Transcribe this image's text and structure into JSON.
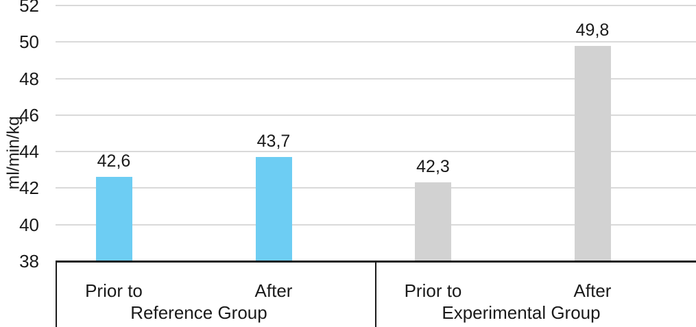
{
  "chart_data": {
    "type": "bar",
    "title": "",
    "xlabel": "",
    "ylabel": "ml/min/kg",
    "ylim": [
      38,
      52
    ],
    "ytick_interval": 2,
    "yticks": [
      "38",
      "40",
      "42",
      "44",
      "46",
      "48",
      "50",
      "52"
    ],
    "grid": true,
    "legend": "none",
    "decimal_separator": ",",
    "groups": [
      {
        "label": "Reference Group",
        "bar_color": "#6dcdf3",
        "points": [
          {
            "category": "Prior to",
            "value": 42.6,
            "value_label": "42,6"
          },
          {
            "category": "After",
            "value": 43.7,
            "value_label": "43,7"
          }
        ]
      },
      {
        "label": "Experimental Group",
        "bar_color": "#d2d2d2",
        "points": [
          {
            "category": "Prior to",
            "value": 42.3,
            "value_label": "42,3"
          },
          {
            "category": "After",
            "value": 49.8,
            "value_label": "49,8"
          }
        ]
      }
    ]
  },
  "colors": {
    "reference_bar": "#6dcdf3",
    "experimental_bar": "#d2d2d2",
    "gridline": "#d9d9d9",
    "axis_line": "#1a1a1a",
    "text": "#1a1a1a"
  }
}
